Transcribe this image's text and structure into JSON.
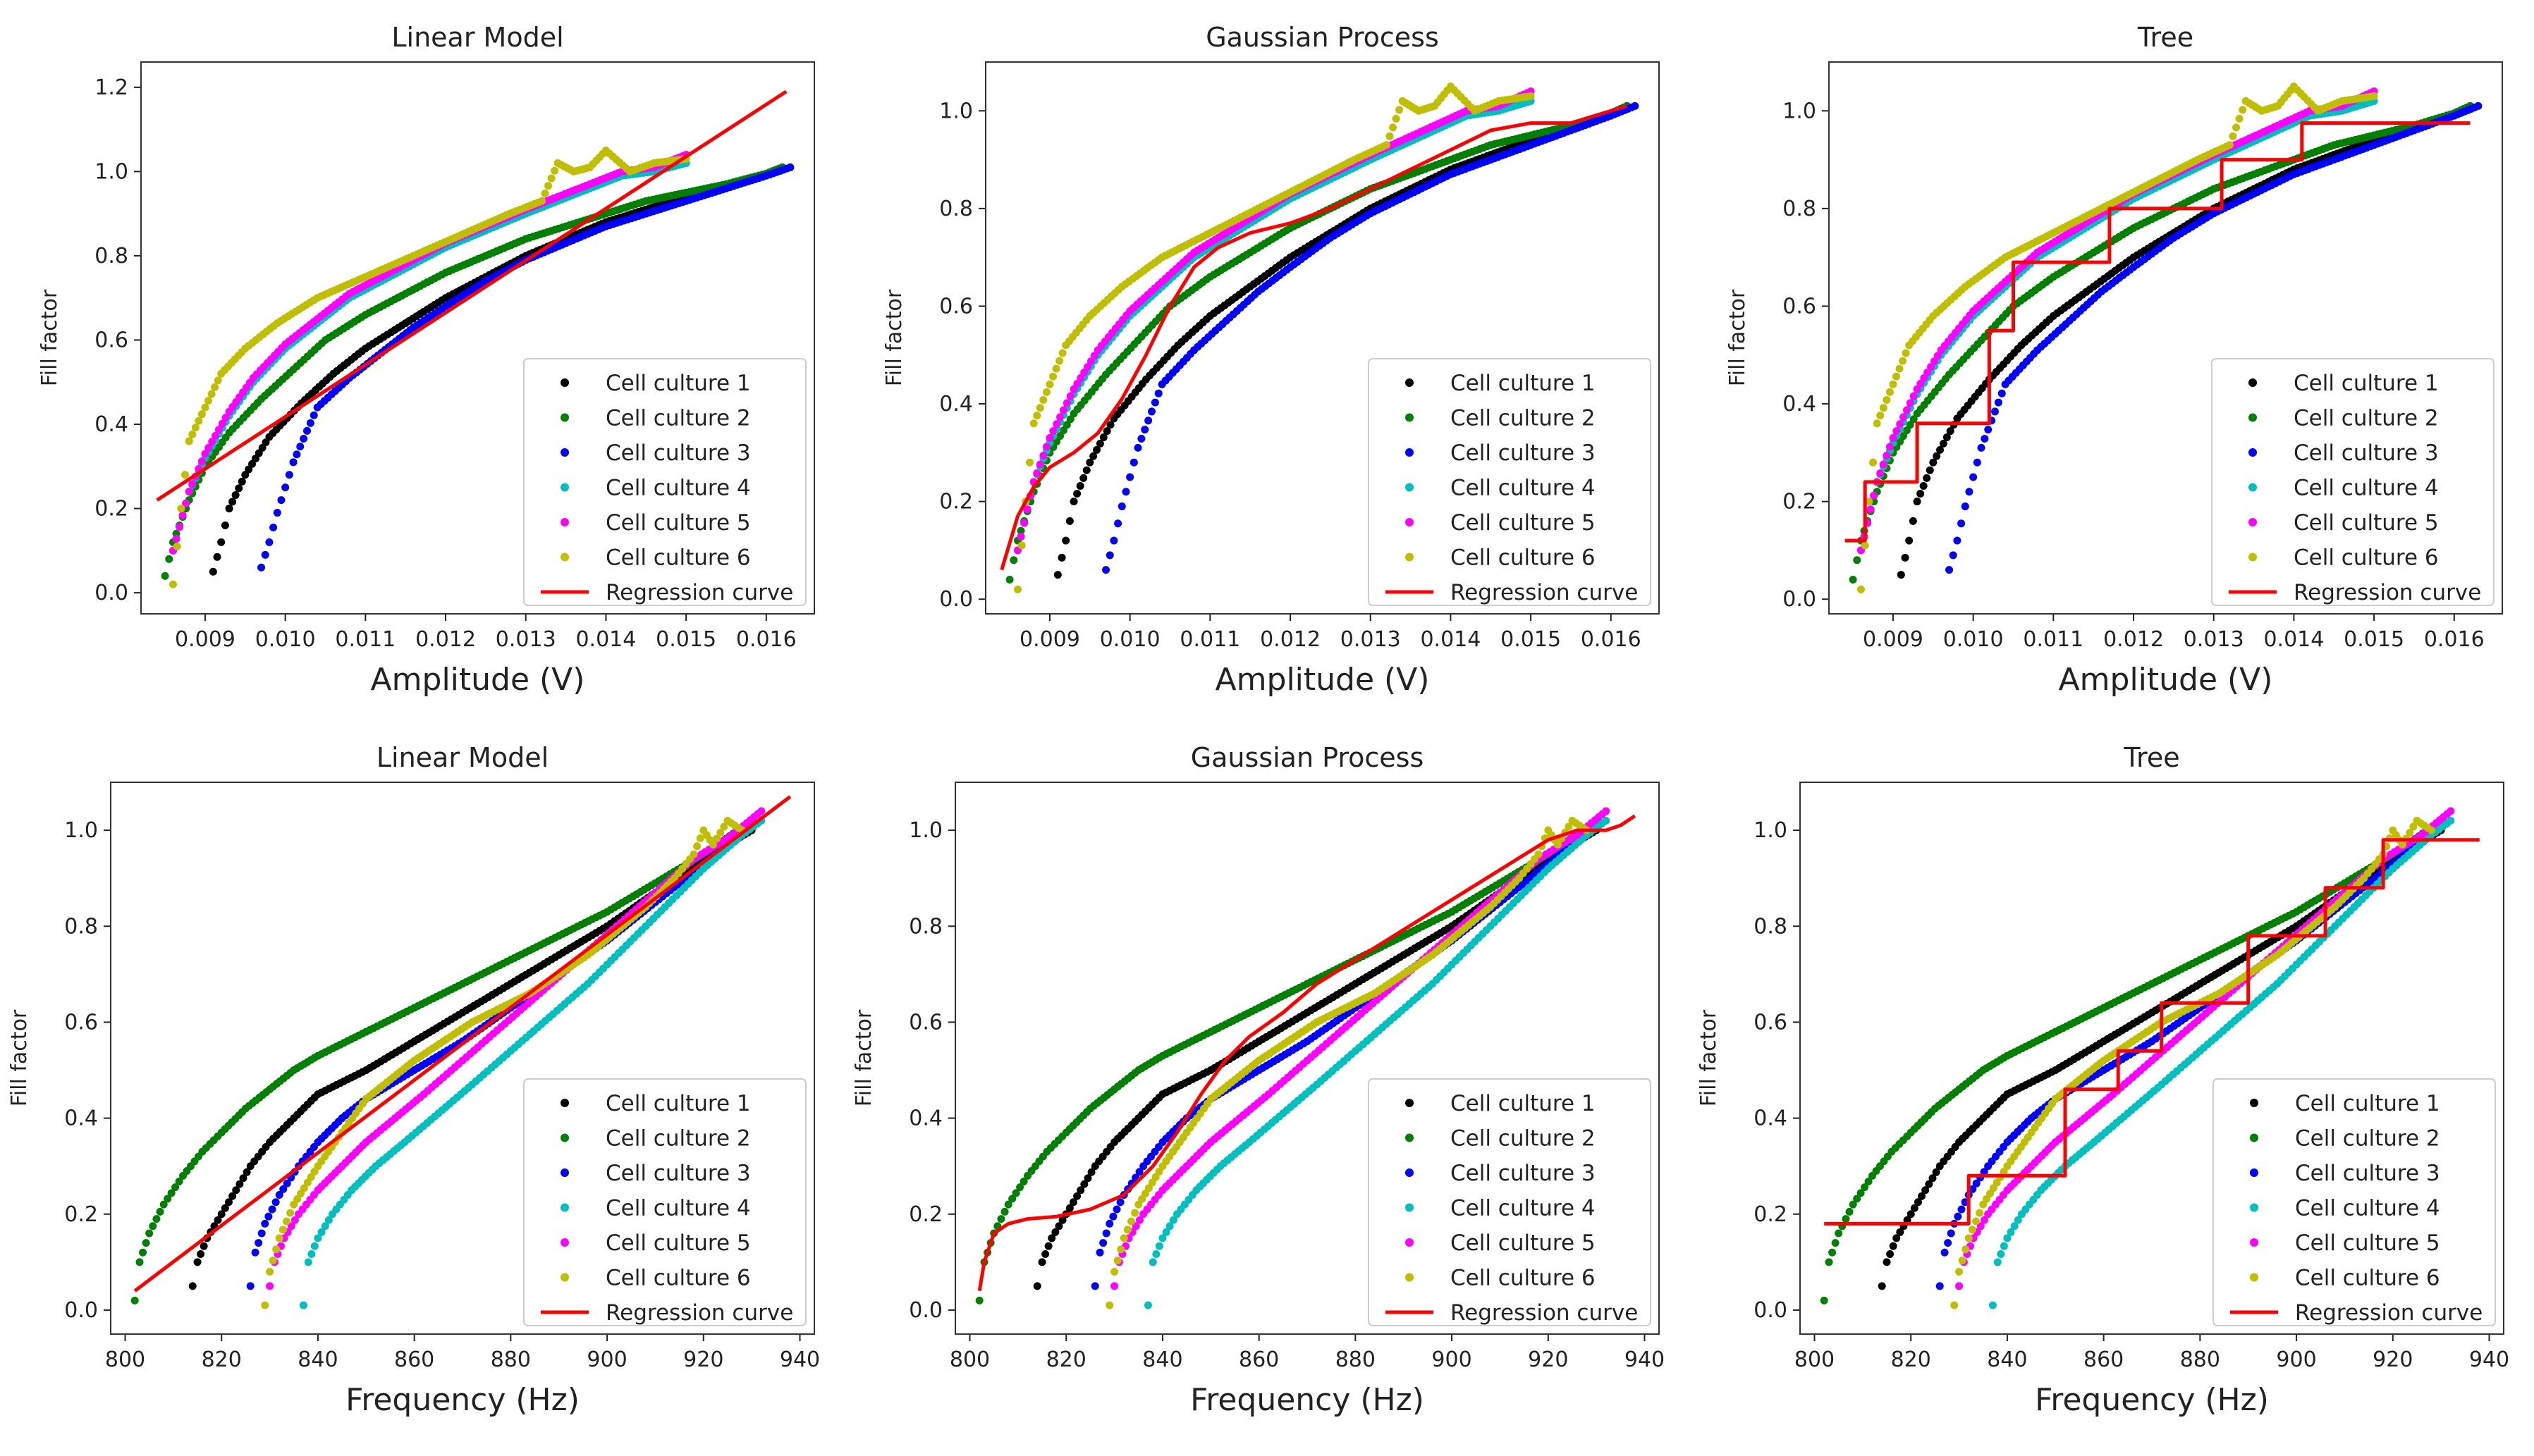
{
  "figure": {
    "legend_entries": [
      "Cell culture 1",
      "Cell culture 2",
      "Cell culture 3",
      "Cell culture 4",
      "Cell culture 5",
      "Cell culture 6",
      "Regression curve"
    ],
    "series_colors": [
      "#000000",
      "#008000",
      "#0000ff",
      "#00bfbf",
      "#ff00ff",
      "#bfbf00"
    ],
    "regression_color": "#ff0000"
  },
  "chart_data": [
    {
      "type": "scatter",
      "title": "Linear Model",
      "xlabel": "Amplitude (V)",
      "ylabel": "Fill factor",
      "xlim": [
        0.0082,
        0.0166
      ],
      "ylim": [
        -0.05,
        1.26
      ],
      "xticks": [
        0.009,
        0.01,
        0.011,
        0.012,
        0.013,
        0.014,
        0.015,
        0.016
      ],
      "xtick_labels": [
        "0.009",
        "0.010",
        "0.011",
        "0.012",
        "0.013",
        "0.014",
        "0.015",
        "0.016"
      ],
      "yticks": [
        0.0,
        0.2,
        0.4,
        0.6,
        0.8,
        1.0,
        1.2
      ],
      "ytick_labels": [
        "0.0",
        "0.2",
        "0.4",
        "0.6",
        "0.8",
        "1.0",
        "1.2"
      ],
      "legend_position": "lower-right",
      "series": [
        {
          "name": "Cell culture 1",
          "x": [
            0.0091,
            0.0092,
            0.0093,
            0.0095,
            0.0098,
            0.0102,
            0.0106,
            0.011,
            0.0115,
            0.012,
            0.0125,
            0.013,
            0.0135,
            0.014,
            0.0145,
            0.015,
            0.0155,
            0.016,
            0.0162
          ],
          "y": [
            0.05,
            0.12,
            0.2,
            0.28,
            0.37,
            0.45,
            0.52,
            0.58,
            0.64,
            0.7,
            0.75,
            0.8,
            0.84,
            0.88,
            0.91,
            0.94,
            0.97,
            0.995,
            1.01
          ]
        },
        {
          "name": "Cell culture 2",
          "x": [
            0.0085,
            0.0086,
            0.0088,
            0.009,
            0.0093,
            0.0097,
            0.0101,
            0.0105,
            0.011,
            0.0115,
            0.012,
            0.0125,
            0.013,
            0.0135,
            0.014,
            0.0145,
            0.015,
            0.0155,
            0.016,
            0.0162
          ],
          "y": [
            0.04,
            0.12,
            0.22,
            0.3,
            0.38,
            0.46,
            0.53,
            0.6,
            0.66,
            0.71,
            0.76,
            0.8,
            0.84,
            0.87,
            0.9,
            0.93,
            0.95,
            0.97,
            0.995,
            1.01
          ]
        },
        {
          "name": "Cell culture 3",
          "x": [
            0.0097,
            0.0098,
            0.0099,
            0.01,
            0.0101,
            0.0104,
            0.0108,
            0.0112,
            0.0116,
            0.012,
            0.0125,
            0.013,
            0.0135,
            0.014,
            0.0145,
            0.015,
            0.0155,
            0.016,
            0.0163
          ],
          "y": [
            0.06,
            0.12,
            0.19,
            0.25,
            0.31,
            0.44,
            0.51,
            0.57,
            0.63,
            0.68,
            0.74,
            0.79,
            0.83,
            0.87,
            0.9,
            0.93,
            0.96,
            0.99,
            1.01
          ]
        },
        {
          "name": "Cell culture 4",
          "x": [
            0.0086,
            0.0088,
            0.009,
            0.0093,
            0.0096,
            0.01,
            0.0104,
            0.0108,
            0.0112,
            0.0116,
            0.012,
            0.0125,
            0.013,
            0.0134,
            0.0138,
            0.0142,
            0.0146,
            0.015
          ],
          "y": [
            0.1,
            0.24,
            0.32,
            0.42,
            0.5,
            0.58,
            0.64,
            0.7,
            0.74,
            0.78,
            0.82,
            0.86,
            0.9,
            0.93,
            0.96,
            0.99,
            1.0,
            1.02
          ]
        },
        {
          "name": "Cell culture 5",
          "x": [
            0.0086,
            0.0088,
            0.009,
            0.0093,
            0.0096,
            0.01,
            0.0104,
            0.0108,
            0.0112,
            0.0116,
            0.012,
            0.0125,
            0.013,
            0.0134,
            0.0138,
            0.0142,
            0.0146,
            0.015
          ],
          "y": [
            0.1,
            0.24,
            0.33,
            0.43,
            0.51,
            0.59,
            0.65,
            0.71,
            0.75,
            0.79,
            0.83,
            0.87,
            0.91,
            0.94,
            0.97,
            1.0,
            1.01,
            1.04
          ]
        },
        {
          "name": "Cell culture 6",
          "x": [
            0.0086,
            0.0087,
            0.0088,
            0.009,
            0.0092,
            0.0095,
            0.0099,
            0.0104,
            0.011,
            0.0116,
            0.0122,
            0.0128,
            0.0132,
            0.0134,
            0.0136,
            0.0138,
            0.014,
            0.0143,
            0.0146,
            0.015
          ],
          "y": [
            0.02,
            0.2,
            0.36,
            0.44,
            0.52,
            0.58,
            0.64,
            0.7,
            0.75,
            0.8,
            0.85,
            0.9,
            0.93,
            1.02,
            1.0,
            1.01,
            1.05,
            1.0,
            1.02,
            1.03
          ]
        }
      ],
      "regression": {
        "x": [
          0.0084,
          0.01625
        ],
        "y": [
          0.22,
          1.19
        ]
      }
    },
    {
      "type": "scatter",
      "title": "Gaussian Process",
      "xlabel": "Amplitude (V)",
      "ylabel": "Fill factor",
      "xlim": [
        0.0082,
        0.0166
      ],
      "ylim": [
        -0.03,
        1.1
      ],
      "xticks": [
        0.009,
        0.01,
        0.011,
        0.012,
        0.013,
        0.014,
        0.015,
        0.016
      ],
      "xtick_labels": [
        "0.009",
        "0.010",
        "0.011",
        "0.012",
        "0.013",
        "0.014",
        "0.015",
        "0.016"
      ],
      "yticks": [
        0.0,
        0.2,
        0.4,
        0.6,
        0.8,
        1.0
      ],
      "ytick_labels": [
        "0.0",
        "0.2",
        "0.4",
        "0.6",
        "0.8",
        "1.0"
      ],
      "legend_position": "lower-right",
      "series": "same-as-chart-1",
      "regression": {
        "x": [
          0.0084,
          0.0086,
          0.0088,
          0.009,
          0.0093,
          0.0096,
          0.0099,
          0.0102,
          0.0105,
          0.0108,
          0.0111,
          0.0115,
          0.012,
          0.0125,
          0.013,
          0.0135,
          0.014,
          0.0145,
          0.015,
          0.0155,
          0.016,
          0.0162
        ],
        "y": [
          0.06,
          0.17,
          0.23,
          0.27,
          0.3,
          0.34,
          0.41,
          0.5,
          0.6,
          0.68,
          0.72,
          0.75,
          0.77,
          0.8,
          0.84,
          0.88,
          0.92,
          0.96,
          0.975,
          0.975,
          1.0,
          1.01
        ]
      }
    },
    {
      "type": "scatter",
      "title": "Tree",
      "xlabel": "Amplitude (V)",
      "ylabel": "Fill factor",
      "xlim": [
        0.0082,
        0.0166
      ],
      "ylim": [
        -0.03,
        1.1
      ],
      "xticks": [
        0.009,
        0.01,
        0.011,
        0.012,
        0.013,
        0.014,
        0.015,
        0.016
      ],
      "xtick_labels": [
        "0.009",
        "0.010",
        "0.011",
        "0.012",
        "0.013",
        "0.014",
        "0.015",
        "0.016"
      ],
      "yticks": [
        0.0,
        0.2,
        0.4,
        0.6,
        0.8,
        1.0
      ],
      "ytick_labels": [
        "0.0",
        "0.2",
        "0.4",
        "0.6",
        "0.8",
        "1.0"
      ],
      "legend_position": "lower-right",
      "series": "same-as-chart-1",
      "regression": {
        "x": [
          0.0084,
          0.00865,
          0.00865,
          0.0093,
          0.0093,
          0.0102,
          0.0102,
          0.0105,
          0.0105,
          0.0117,
          0.0117,
          0.0131,
          0.0131,
          0.0141,
          0.0141,
          0.0162
        ],
        "y": [
          0.12,
          0.12,
          0.24,
          0.24,
          0.36,
          0.36,
          0.55,
          0.55,
          0.69,
          0.69,
          0.8,
          0.8,
          0.9,
          0.9,
          0.975,
          0.975
        ]
      }
    },
    {
      "type": "scatter",
      "title": "Linear Model",
      "xlabel": "Frequency (Hz)",
      "ylabel": "Fill factor",
      "xlim": [
        797,
        943
      ],
      "ylim": [
        -0.05,
        1.1
      ],
      "xticks": [
        800,
        820,
        840,
        860,
        880,
        900,
        920,
        940
      ],
      "xtick_labels": [
        "800",
        "820",
        "840",
        "860",
        "880",
        "900",
        "920",
        "940"
      ],
      "yticks": [
        0.0,
        0.2,
        0.4,
        0.6,
        0.8,
        1.0
      ],
      "ytick_labels": [
        "0.0",
        "0.2",
        "0.4",
        "0.6",
        "0.8",
        "1.0"
      ],
      "legend_position": "lower-right",
      "series": [
        {
          "name": "Cell culture 1",
          "x": [
            814,
            815,
            817,
            820,
            823,
            826,
            830,
            835,
            840,
            850,
            860,
            870,
            880,
            890,
            900,
            910,
            920,
            930
          ],
          "y": [
            0.05,
            0.1,
            0.15,
            0.2,
            0.25,
            0.3,
            0.35,
            0.4,
            0.45,
            0.5,
            0.56,
            0.62,
            0.68,
            0.74,
            0.8,
            0.87,
            0.94,
            1.0
          ]
        },
        {
          "name": "Cell culture 2",
          "x": [
            802,
            803,
            805,
            808,
            812,
            816,
            820,
            825,
            830,
            835,
            840,
            850,
            860,
            870,
            880,
            890,
            900,
            910,
            920,
            930
          ],
          "y": [
            0.02,
            0.1,
            0.16,
            0.22,
            0.28,
            0.33,
            0.37,
            0.42,
            0.46,
            0.5,
            0.53,
            0.58,
            0.63,
            0.68,
            0.73,
            0.78,
            0.83,
            0.89,
            0.95,
            1.02
          ]
        },
        {
          "name": "Cell culture 3",
          "x": [
            826,
            827,
            829,
            832,
            836,
            840,
            845,
            850,
            860,
            870,
            880,
            890,
            900,
            910,
            920,
            930
          ],
          "y": [
            0.05,
            0.12,
            0.18,
            0.24,
            0.3,
            0.35,
            0.4,
            0.44,
            0.5,
            0.56,
            0.63,
            0.7,
            0.77,
            0.85,
            0.93,
            1.01
          ]
        },
        {
          "name": "Cell culture 4",
          "x": [
            837,
            838,
            840,
            843,
            847,
            852,
            858,
            865,
            872,
            880,
            888,
            896,
            904,
            912,
            920,
            928,
            932
          ],
          "y": [
            0.01,
            0.1,
            0.15,
            0.2,
            0.25,
            0.3,
            0.35,
            0.41,
            0.47,
            0.54,
            0.61,
            0.68,
            0.76,
            0.84,
            0.92,
            0.99,
            1.02
          ]
        },
        {
          "name": "Cell culture 5",
          "x": [
            830,
            831,
            833,
            836,
            840,
            845,
            850,
            856,
            862,
            870,
            878,
            886,
            894,
            902,
            910,
            918,
            926,
            932
          ],
          "y": [
            0.05,
            0.1,
            0.15,
            0.2,
            0.25,
            0.3,
            0.35,
            0.4,
            0.45,
            0.52,
            0.59,
            0.66,
            0.73,
            0.8,
            0.87,
            0.94,
            0.99,
            1.04
          ]
        },
        {
          "name": "Cell culture 6",
          "x": [
            829,
            830,
            832,
            835,
            840,
            845,
            850,
            855,
            860,
            866,
            872,
            878,
            884,
            890,
            896,
            902,
            908,
            914,
            918,
            920,
            922,
            925,
            928
          ],
          "y": [
            0.01,
            0.08,
            0.15,
            0.22,
            0.3,
            0.37,
            0.44,
            0.48,
            0.52,
            0.56,
            0.6,
            0.63,
            0.66,
            0.7,
            0.74,
            0.79,
            0.84,
            0.9,
            0.95,
            1.0,
            0.97,
            1.02,
            1.0
          ]
        }
      ],
      "regression": {
        "x": [
          802,
          938
        ],
        "y": [
          0.04,
          1.07
        ]
      }
    },
    {
      "type": "scatter",
      "title": "Gaussian Process",
      "xlabel": "Frequency (Hz)",
      "ylabel": "Fill factor",
      "xlim": [
        797,
        943
      ],
      "ylim": [
        -0.05,
        1.1
      ],
      "xticks": [
        800,
        820,
        840,
        860,
        880,
        900,
        920,
        940
      ],
      "xtick_labels": [
        "800",
        "820",
        "840",
        "860",
        "880",
        "900",
        "920",
        "940"
      ],
      "yticks": [
        0.0,
        0.2,
        0.4,
        0.6,
        0.8,
        1.0
      ],
      "ytick_labels": [
        "0.0",
        "0.2",
        "0.4",
        "0.6",
        "0.8",
        "1.0"
      ],
      "legend_position": "lower-right",
      "series": "same-as-chart-4",
      "regression": {
        "x": [
          802,
          803,
          805,
          808,
          812,
          818,
          825,
          832,
          838,
          843,
          848,
          853,
          858,
          865,
          872,
          880,
          888,
          896,
          904,
          912,
          920,
          926,
          932,
          935,
          938
        ],
        "y": [
          0.04,
          0.1,
          0.16,
          0.18,
          0.19,
          0.195,
          0.21,
          0.24,
          0.3,
          0.37,
          0.45,
          0.52,
          0.57,
          0.62,
          0.68,
          0.73,
          0.78,
          0.83,
          0.88,
          0.93,
          0.98,
          1.0,
          1.0,
          1.01,
          1.03
        ]
      }
    },
    {
      "type": "scatter",
      "title": "Tree",
      "xlabel": "Frequency (Hz)",
      "ylabel": "Fill factor",
      "xlim": [
        797,
        943
      ],
      "ylim": [
        -0.05,
        1.1
      ],
      "xticks": [
        800,
        820,
        840,
        860,
        880,
        900,
        920,
        940
      ],
      "xtick_labels": [
        "800",
        "820",
        "840",
        "860",
        "880",
        "900",
        "920",
        "940"
      ],
      "yticks": [
        0.0,
        0.2,
        0.4,
        0.6,
        0.8,
        1.0
      ],
      "ytick_labels": [
        "0.0",
        "0.2",
        "0.4",
        "0.6",
        "0.8",
        "1.0"
      ],
      "legend_position": "lower-right",
      "series": "same-as-chart-4",
      "regression": {
        "x": [
          802,
          832,
          832,
          852,
          852,
          863,
          863,
          872,
          872,
          890,
          890,
          906,
          906,
          918,
          918,
          938
        ],
        "y": [
          0.18,
          0.18,
          0.28,
          0.28,
          0.46,
          0.46,
          0.54,
          0.54,
          0.64,
          0.64,
          0.78,
          0.78,
          0.88,
          0.88,
          0.98,
          0.98
        ]
      }
    }
  ]
}
